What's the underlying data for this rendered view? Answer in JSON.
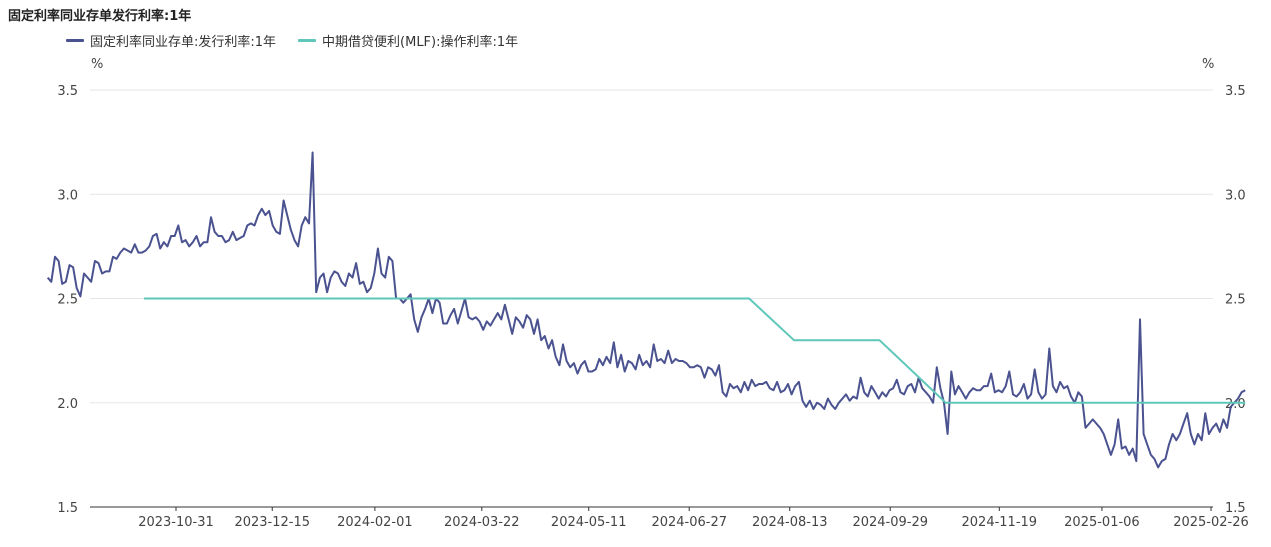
{
  "chart_data": {
    "type": "line",
    "title": "固定利率同业存单发行利率:1年",
    "ylabel_left": "%",
    "ylabel_right": "%",
    "ylim": [
      1.5,
      3.5
    ],
    "yticks": [
      "1.5",
      "2.0",
      "2.5",
      "3.0",
      "3.5"
    ],
    "x_tick_labels": [
      "2023-10-31",
      "2023-12-15",
      "2024-02-01",
      "2024-03-22",
      "2024-05-11",
      "2024-06-27",
      "2024-08-13",
      "2024-09-29",
      "2024-11-19",
      "2025-01-06",
      "2025-02-26"
    ],
    "colors": {
      "cd_rate": "#4a5290",
      "mlf_rate": "#5ec7b9"
    },
    "series": [
      {
        "name": "固定利率同业存单:发行利率:1年",
        "x_range": [
          "2023-09-01",
          "2025-03-14"
        ],
        "values": [
          2.6,
          2.58,
          2.7,
          2.68,
          2.57,
          2.58,
          2.66,
          2.65,
          2.55,
          2.51,
          2.62,
          2.6,
          2.58,
          2.68,
          2.67,
          2.62,
          2.63,
          2.63,
          2.7,
          2.69,
          2.72,
          2.74,
          2.73,
          2.72,
          2.76,
          2.72,
          2.72,
          2.73,
          2.75,
          2.8,
          2.81,
          2.74,
          2.77,
          2.75,
          2.8,
          2.8,
          2.85,
          2.77,
          2.78,
          2.75,
          2.77,
          2.8,
          2.75,
          2.77,
          2.77,
          2.89,
          2.82,
          2.8,
          2.8,
          2.77,
          2.78,
          2.82,
          2.78,
          2.79,
          2.8,
          2.85,
          2.86,
          2.85,
          2.9,
          2.93,
          2.9,
          2.92,
          2.85,
          2.82,
          2.81,
          2.97,
          2.9,
          2.83,
          2.78,
          2.75,
          2.85,
          2.89,
          2.86,
          3.2,
          2.53,
          2.6,
          2.62,
          2.53,
          2.6,
          2.63,
          2.62,
          2.58,
          2.56,
          2.62,
          2.6,
          2.67,
          2.57,
          2.58,
          2.53,
          2.55,
          2.62,
          2.74,
          2.62,
          2.6,
          2.7,
          2.68,
          2.5,
          2.5,
          2.48,
          2.5,
          2.52,
          2.4,
          2.34,
          2.41,
          2.45,
          2.5,
          2.43,
          2.5,
          2.48,
          2.38,
          2.38,
          2.42,
          2.45,
          2.38,
          2.44,
          2.5,
          2.41,
          2.4,
          2.41,
          2.39,
          2.35,
          2.39,
          2.37,
          2.4,
          2.43,
          2.4,
          2.47,
          2.4,
          2.33,
          2.41,
          2.39,
          2.36,
          2.42,
          2.4,
          2.33,
          2.4,
          2.3,
          2.32,
          2.26,
          2.3,
          2.22,
          2.18,
          2.28,
          2.2,
          2.17,
          2.19,
          2.14,
          2.18,
          2.2,
          2.15,
          2.15,
          2.16,
          2.21,
          2.18,
          2.22,
          2.19,
          2.29,
          2.17,
          2.23,
          2.15,
          2.2,
          2.19,
          2.16,
          2.23,
          2.18,
          2.2,
          2.17,
          2.28,
          2.2,
          2.21,
          2.19,
          2.25,
          2.19,
          2.21,
          2.2,
          2.2,
          2.19,
          2.17,
          2.17,
          2.18,
          2.17,
          2.12,
          2.17,
          2.16,
          2.13,
          2.18,
          2.05,
          2.03,
          2.09,
          2.07,
          2.08,
          2.05,
          2.1,
          2.06,
          2.11,
          2.08,
          2.09,
          2.09,
          2.1,
          2.07,
          2.06,
          2.1,
          2.05,
          2.06,
          2.09,
          2.04,
          2.08,
          2.1,
          2.01,
          1.98,
          2.01,
          1.97,
          2.0,
          1.99,
          1.97,
          2.02,
          1.99,
          1.97,
          2.0,
          2.02,
          2.04,
          2.01,
          2.03,
          2.02,
          2.12,
          2.05,
          2.03,
          2.08,
          2.05,
          2.02,
          2.05,
          2.03,
          2.06,
          2.07,
          2.11,
          2.05,
          2.04,
          2.08,
          2.09,
          2.05,
          2.12,
          2.07,
          2.05,
          2.03,
          2.0,
          2.17,
          2.07,
          2.0,
          1.85,
          2.15,
          2.04,
          2.08,
          2.05,
          2.02,
          2.05,
          2.07,
          2.06,
          2.06,
          2.08,
          2.08,
          2.14,
          2.05,
          2.06,
          2.05,
          2.08,
          2.15,
          2.04,
          2.03,
          2.05,
          2.09,
          2.02,
          2.04,
          2.16,
          2.05,
          2.02,
          2.04,
          2.26,
          2.08,
          2.05,
          2.1,
          2.07,
          2.08,
          2.03,
          2.0,
          2.05,
          2.03,
          1.88,
          1.9,
          1.92,
          1.9,
          1.88,
          1.85,
          1.8,
          1.75,
          1.8,
          1.92,
          1.78,
          1.79,
          1.75,
          1.78,
          1.72,
          2.4,
          1.85,
          1.8,
          1.75,
          1.73,
          1.69,
          1.72,
          1.73,
          1.8,
          1.85,
          1.82,
          1.85,
          1.9,
          1.95,
          1.85,
          1.8,
          1.85,
          1.82,
          1.95,
          1.85,
          1.88,
          1.9,
          1.86,
          1.92,
          1.88,
          1.98,
          2.0,
          2.02,
          2.05,
          2.06
        ]
      },
      {
        "name": "中期借贷便利(MLF):操作利率:1年",
        "points": [
          {
            "x": "2023-10-16",
            "y": 2.5
          },
          {
            "x": "2024-07-25",
            "y": 2.5
          },
          {
            "x": "2024-08-15",
            "y": 2.3
          },
          {
            "x": "2024-09-24",
            "y": 2.3
          },
          {
            "x": "2024-10-25",
            "y": 2.0
          },
          {
            "x": "2025-03-14",
            "y": 2.0
          }
        ]
      }
    ]
  }
}
